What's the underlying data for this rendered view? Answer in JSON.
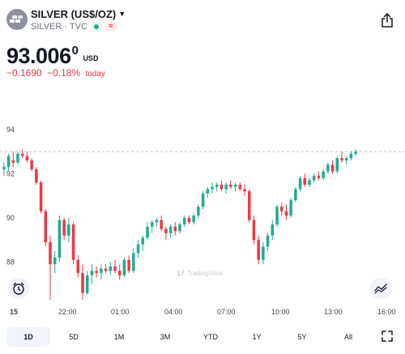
{
  "header": {
    "symbol": "SILVER (US$/OZ)",
    "subtitle": "SILVER · TVC",
    "icons": [
      "silver-bars-icon",
      "chevron-down-icon",
      "share-icon"
    ]
  },
  "quote": {
    "price_main": "93.006",
    "price_sup": "0",
    "currency": "USD",
    "change": "−0.1690",
    "change_pct": "−0.18%",
    "change_label": "today"
  },
  "colors": {
    "up": "#22ab94",
    "down": "#f23645",
    "muted": "#6a6d78"
  },
  "chart_data": {
    "type": "candlestick",
    "y_ticks": [
      "94",
      "92",
      "90",
      "88"
    ],
    "ylim": [
      86.0,
      94.8
    ],
    "reference_line": 93.0,
    "x_ticks": [
      "15",
      "22:00",
      "01:00",
      "04:00",
      "07:00",
      "10:00",
      "13:00",
      "16:00"
    ],
    "candles": [
      [
        92.2,
        92.5,
        91.9,
        92.3
      ],
      [
        92.3,
        92.9,
        92.1,
        92.8
      ],
      [
        92.6,
        93.0,
        92.3,
        92.5
      ],
      [
        92.5,
        93.0,
        92.4,
        92.9
      ],
      [
        92.9,
        93.1,
        92.7,
        92.8
      ],
      [
        92.8,
        93.0,
        92.5,
        92.6
      ],
      [
        92.6,
        92.7,
        92.1,
        92.2
      ],
      [
        92.2,
        92.3,
        91.5,
        91.6
      ],
      [
        91.6,
        91.7,
        90.2,
        90.3
      ],
      [
        90.3,
        90.4,
        88.7,
        88.9
      ],
      [
        88.9,
        89.2,
        86.3,
        87.9
      ],
      [
        87.9,
        88.5,
        87.5,
        88.2
      ],
      [
        88.2,
        90.1,
        88.0,
        89.9
      ],
      [
        89.9,
        90.0,
        89.0,
        89.2
      ],
      [
        89.2,
        90.0,
        88.9,
        89.7
      ],
      [
        89.7,
        89.8,
        87.9,
        88.1
      ],
      [
        88.1,
        88.3,
        87.3,
        87.5
      ],
      [
        87.5,
        87.9,
        86.3,
        86.6
      ],
      [
        86.6,
        87.6,
        86.5,
        87.4
      ],
      [
        87.4,
        87.9,
        87.0,
        87.6
      ],
      [
        87.6,
        87.8,
        87.3,
        87.5
      ],
      [
        87.5,
        87.9,
        87.2,
        87.7
      ],
      [
        87.7,
        87.9,
        87.5,
        87.6
      ],
      [
        87.6,
        88.0,
        87.4,
        87.8
      ],
      [
        87.8,
        88.1,
        87.5,
        87.6
      ],
      [
        87.6,
        87.9,
        87.2,
        87.4
      ],
      [
        87.4,
        88.2,
        87.3,
        88.1
      ],
      [
        88.1,
        88.3,
        87.5,
        87.6
      ],
      [
        87.6,
        88.6,
        87.5,
        88.4
      ],
      [
        88.4,
        89.0,
        88.2,
        88.8
      ],
      [
        88.8,
        89.2,
        88.5,
        89.1
      ],
      [
        89.1,
        89.8,
        89.0,
        89.6
      ],
      [
        89.6,
        89.9,
        89.3,
        89.8
      ],
      [
        89.8,
        90.0,
        89.6,
        89.9
      ],
      [
        89.9,
        90.1,
        89.4,
        89.5
      ],
      [
        89.5,
        89.6,
        89.0,
        89.3
      ],
      [
        89.3,
        89.7,
        89.1,
        89.6
      ],
      [
        89.6,
        89.8,
        89.2,
        89.4
      ],
      [
        89.4,
        89.8,
        89.3,
        89.7
      ],
      [
        89.7,
        90.1,
        89.6,
        90.0
      ],
      [
        90.0,
        90.1,
        89.7,
        89.8
      ],
      [
        89.8,
        90.2,
        89.7,
        90.1
      ],
      [
        90.1,
        90.6,
        90.0,
        90.5
      ],
      [
        90.5,
        91.2,
        90.4,
        91.1
      ],
      [
        91.1,
        91.4,
        90.9,
        91.3
      ],
      [
        91.3,
        91.6,
        91.1,
        91.4
      ],
      [
        91.4,
        91.6,
        91.2,
        91.5
      ],
      [
        91.5,
        91.7,
        91.2,
        91.3
      ],
      [
        91.3,
        91.6,
        91.1,
        91.5
      ],
      [
        91.5,
        91.7,
        91.3,
        91.4
      ],
      [
        91.4,
        91.6,
        91.2,
        91.5
      ],
      [
        91.5,
        91.6,
        91.2,
        91.3
      ],
      [
        91.3,
        91.5,
        91.0,
        91.2
      ],
      [
        91.2,
        91.3,
        89.8,
        89.9
      ],
      [
        89.9,
        90.1,
        88.8,
        89.0
      ],
      [
        89.0,
        89.2,
        87.9,
        88.1
      ],
      [
        88.1,
        88.9,
        87.9,
        88.7
      ],
      [
        88.7,
        89.3,
        88.5,
        89.2
      ],
      [
        89.2,
        89.9,
        89.0,
        89.7
      ],
      [
        89.7,
        90.6,
        89.6,
        90.5
      ],
      [
        90.5,
        90.7,
        90.1,
        90.3
      ],
      [
        90.3,
        90.6,
        89.9,
        90.1
      ],
      [
        90.1,
        90.9,
        90.0,
        90.8
      ],
      [
        90.8,
        91.4,
        90.7,
        91.3
      ],
      [
        91.3,
        91.9,
        91.2,
        91.8
      ],
      [
        91.8,
        92.0,
        91.4,
        91.5
      ],
      [
        91.5,
        91.8,
        91.4,
        91.7
      ],
      [
        91.7,
        92.0,
        91.6,
        91.9
      ],
      [
        91.9,
        92.1,
        91.7,
        91.8
      ],
      [
        91.8,
        92.2,
        91.7,
        92.1
      ],
      [
        92.1,
        92.5,
        92.0,
        92.4
      ],
      [
        92.4,
        92.6,
        92.0,
        92.1
      ],
      [
        92.1,
        92.8,
        92.0,
        92.7
      ],
      [
        92.7,
        93.0,
        92.5,
        92.6
      ],
      [
        92.6,
        92.8,
        92.4,
        92.7
      ],
      [
        92.7,
        93.0,
        92.6,
        92.9
      ],
      [
        92.9,
        93.1,
        92.8,
        93.0
      ]
    ]
  },
  "watermark": "TradingView",
  "tools": {
    "alert_icon": "alarm-clock-icon",
    "indicator_icon": "indicator-icon"
  },
  "timeframes": [
    "1D",
    "5D",
    "1M",
    "3M",
    "YTD",
    "1Y",
    "5Y",
    "All"
  ],
  "active_timeframe": "1D",
  "fullscreen_icon": "fullscreen-icon"
}
